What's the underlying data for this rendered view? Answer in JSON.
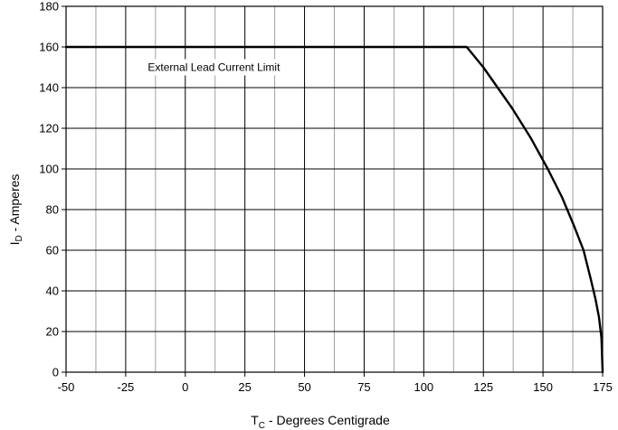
{
  "chart_data": {
    "type": "line",
    "title": "",
    "xlabel": {
      "main": "T",
      "sub": "C",
      "rest": " - Degrees Centigrade"
    },
    "ylabel": {
      "main": "I",
      "sub": "D",
      "rest": " - Amperes"
    },
    "xlim": [
      -50,
      175
    ],
    "ylim": [
      0,
      180
    ],
    "x_ticks": [
      -50,
      -25,
      0,
      25,
      50,
      75,
      100,
      125,
      150,
      175
    ],
    "y_ticks": [
      0,
      20,
      40,
      60,
      80,
      100,
      120,
      140,
      160,
      180
    ],
    "x_minor_step": 12.5,
    "grid": true,
    "series": [
      {
        "x": [
          -50,
          118,
          125,
          137,
          145,
          152,
          158,
          163,
          167,
          170,
          172,
          173.5,
          174.5,
          175
        ],
        "y": [
          160,
          160,
          150,
          130,
          115,
          100,
          86,
          72,
          60,
          46,
          36,
          27,
          17,
          0
        ]
      }
    ],
    "annotations": [
      {
        "text": "External Lead Current Limit",
        "x": 12,
        "y": 150
      }
    ],
    "colors": {
      "line": "#000000",
      "grid_major": "#000000",
      "grid_minor": "#a0a0a0",
      "background": "#ffffff"
    }
  }
}
